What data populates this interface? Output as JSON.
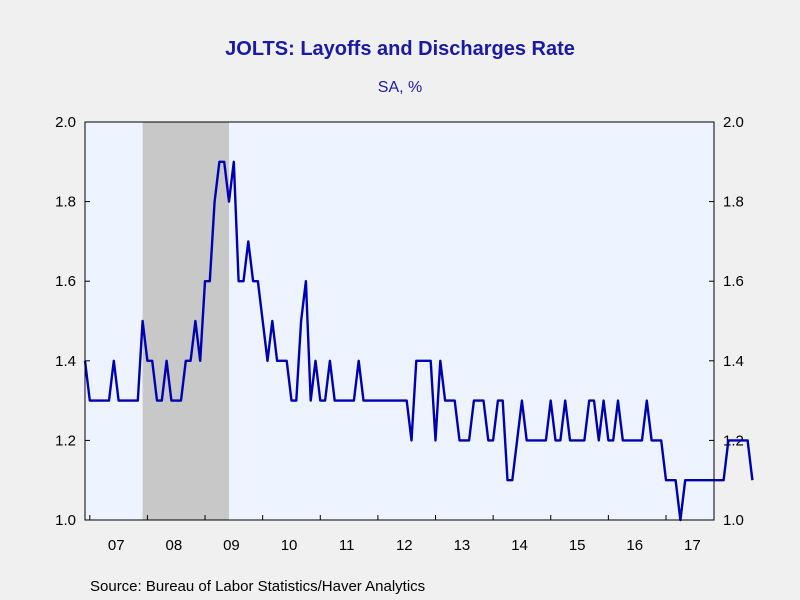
{
  "chart_data": {
    "type": "line",
    "title": "JOLTS: Layoffs and Discharges Rate",
    "subtitle": "SA, %",
    "source": "Source:  Bureau of Labor Statistics/Haver Analytics",
    "ylim": [
      1.0,
      2.0
    ],
    "y_ticks": [
      "1.0",
      "1.2",
      "1.4",
      "1.6",
      "1.8",
      "2.0"
    ],
    "x_labels": [
      "07",
      "08",
      "09",
      "10",
      "11",
      "12",
      "13",
      "14",
      "15",
      "16",
      "17"
    ],
    "x_range": [
      "2006-12",
      "2017-11"
    ],
    "recession_shading": {
      "start": "2007-12",
      "end": "2009-06"
    },
    "grid": false,
    "series": [
      {
        "color": "#0000b3",
        "x_start": "2006-12",
        "frequency": "monthly",
        "values": [
          1.4,
          1.3,
          1.3,
          1.3,
          1.3,
          1.3,
          1.4,
          1.3,
          1.3,
          1.3,
          1.3,
          1.3,
          1.5,
          1.4,
          1.4,
          1.3,
          1.3,
          1.4,
          1.3,
          1.3,
          1.3,
          1.4,
          1.4,
          1.5,
          1.4,
          1.6,
          1.6,
          1.8,
          1.9,
          1.9,
          1.8,
          1.9,
          1.6,
          1.6,
          1.7,
          1.6,
          1.6,
          1.5,
          1.4,
          1.5,
          1.4,
          1.4,
          1.4,
          1.3,
          1.3,
          1.5,
          1.6,
          1.3,
          1.4,
          1.3,
          1.3,
          1.4,
          1.3,
          1.3,
          1.3,
          1.3,
          1.3,
          1.4,
          1.3,
          1.3,
          1.3,
          1.3,
          1.3,
          1.3,
          1.3,
          1.3,
          1.3,
          1.3,
          1.2,
          1.4,
          1.4,
          1.4,
          1.4,
          1.2,
          1.4,
          1.3,
          1.3,
          1.3,
          1.2,
          1.2,
          1.2,
          1.3,
          1.3,
          1.3,
          1.2,
          1.2,
          1.3,
          1.3,
          1.1,
          1.1,
          1.2,
          1.3,
          1.2,
          1.2,
          1.2,
          1.2,
          1.2,
          1.3,
          1.2,
          1.2,
          1.3,
          1.2,
          1.2,
          1.2,
          1.2,
          1.3,
          1.3,
          1.2,
          1.3,
          1.2,
          1.2,
          1.3,
          1.2,
          1.2,
          1.2,
          1.2,
          1.2,
          1.3,
          1.2,
          1.2,
          1.2,
          1.1,
          1.1,
          1.1,
          1.0,
          1.1,
          1.1,
          1.1,
          1.1,
          1.1,
          1.1,
          1.1,
          1.1,
          1.1,
          1.2,
          1.2,
          1.2,
          1.2,
          1.2,
          1.1
        ]
      }
    ]
  }
}
